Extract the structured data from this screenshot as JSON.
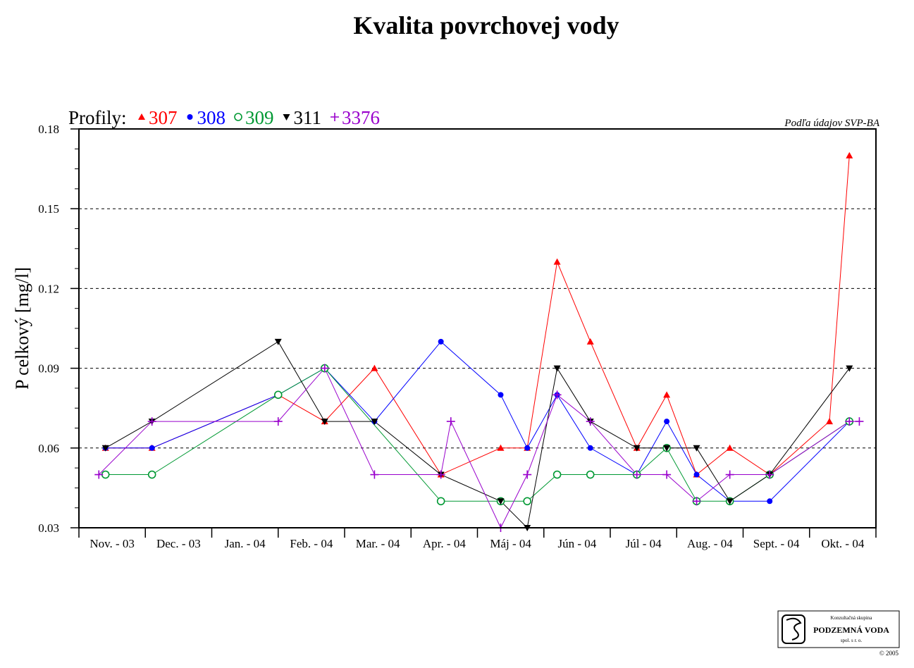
{
  "chart_data": {
    "type": "line",
    "title": "Kvalita povrchovej vody",
    "ylabel": "P celkový [mg/l]",
    "xlabel": "",
    "source_note": "Podľa údajov SVP-BA",
    "legend_prefix": "Profily:",
    "legend_placement": "top-left",
    "ylim": [
      0.03,
      0.18
    ],
    "yticks": [
      "0.03",
      "0.06",
      "0.09",
      "0.12",
      "0.15",
      "0.18"
    ],
    "grid": "dashed horizontal",
    "categories": [
      "Nov. - 03",
      "Dec. - 03",
      "Jan. - 04",
      "Feb. - 04",
      "Mar. - 04",
      "Apr. - 04",
      "Máj - 04",
      "Jún - 04",
      "Júl - 04",
      "Aug. - 04",
      "Sept. - 04",
      "Okt. - 04"
    ],
    "series": [
      {
        "name": "307",
        "color": "#ff0000",
        "marker": "triangle-up",
        "points": [
          [
            0.4,
            0.06
          ],
          [
            1.1,
            0.06
          ],
          [
            3.0,
            0.08
          ],
          [
            3.7,
            0.07
          ],
          [
            4.45,
            0.09
          ],
          [
            5.45,
            0.05
          ],
          [
            6.35,
            0.06
          ],
          [
            6.75,
            0.06
          ],
          [
            7.2,
            0.13
          ],
          [
            7.7,
            0.1
          ],
          [
            8.4,
            0.06
          ],
          [
            8.85,
            0.08
          ],
          [
            9.3,
            0.05
          ],
          [
            9.8,
            0.06
          ],
          [
            10.4,
            0.05
          ],
          [
            11.3,
            0.07
          ],
          [
            11.6,
            0.17
          ]
        ]
      },
      {
        "name": "308",
        "color": "#0000ff",
        "marker": "circle",
        "points": [
          [
            0.4,
            0.06
          ],
          [
            1.1,
            0.06
          ],
          [
            3.0,
            0.08
          ],
          [
            3.7,
            0.09
          ],
          [
            4.45,
            0.07
          ],
          [
            5.45,
            0.1
          ],
          [
            6.35,
            0.08
          ],
          [
            6.75,
            0.06
          ],
          [
            7.2,
            0.08
          ],
          [
            7.7,
            0.06
          ],
          [
            8.4,
            0.05
          ],
          [
            8.85,
            0.07
          ],
          [
            9.3,
            0.05
          ],
          [
            9.8,
            0.04
          ],
          [
            10.4,
            0.04
          ],
          [
            11.6,
            0.07
          ]
        ]
      },
      {
        "name": "309",
        "color": "#009933",
        "marker": "circle-open",
        "points": [
          [
            0.4,
            0.05
          ],
          [
            1.1,
            0.05
          ],
          [
            3.0,
            0.08
          ],
          [
            3.7,
            0.09
          ],
          [
            5.45,
            0.04
          ],
          [
            6.35,
            0.04
          ],
          [
            6.75,
            0.04
          ],
          [
            7.2,
            0.05
          ],
          [
            7.7,
            0.05
          ],
          [
            8.4,
            0.05
          ],
          [
            8.85,
            0.06
          ],
          [
            9.3,
            0.04
          ],
          [
            9.8,
            0.04
          ],
          [
            10.4,
            0.05
          ],
          [
            11.6,
            0.07
          ]
        ]
      },
      {
        "name": "311",
        "color": "#000000",
        "marker": "triangle-down",
        "points": [
          [
            0.4,
            0.06
          ],
          [
            1.1,
            0.07
          ],
          [
            3.0,
            0.1
          ],
          [
            3.7,
            0.07
          ],
          [
            4.45,
            0.07
          ],
          [
            5.45,
            0.05
          ],
          [
            6.35,
            0.04
          ],
          [
            6.75,
            0.03
          ],
          [
            7.2,
            0.09
          ],
          [
            7.7,
            0.07
          ],
          [
            8.4,
            0.06
          ],
          [
            8.85,
            0.06
          ],
          [
            9.3,
            0.06
          ],
          [
            9.8,
            0.04
          ],
          [
            10.4,
            0.05
          ],
          [
            11.6,
            0.09
          ]
        ]
      },
      {
        "name": "3376",
        "color": "#9900cc",
        "marker": "plus",
        "points": [
          [
            0.3,
            0.05
          ],
          [
            1.1,
            0.07
          ],
          [
            3.0,
            0.07
          ],
          [
            3.7,
            0.09
          ],
          [
            4.45,
            0.05
          ],
          [
            5.45,
            0.05
          ],
          [
            5.6,
            0.07
          ],
          [
            6.35,
            0.03
          ],
          [
            6.75,
            0.05
          ],
          [
            7.2,
            0.08
          ],
          [
            7.7,
            0.07
          ],
          [
            8.4,
            0.05
          ],
          [
            8.85,
            0.05
          ],
          [
            9.3,
            0.04
          ],
          [
            9.8,
            0.05
          ],
          [
            10.4,
            0.05
          ],
          [
            11.6,
            0.07
          ],
          [
            11.75,
            0.07
          ]
        ]
      }
    ]
  },
  "logo": {
    "line1": "Konzultačná skupina",
    "line2": "PODZEMNÁ VODA",
    "line3": "spol. s r. o.",
    "copyright": "© 2005"
  }
}
